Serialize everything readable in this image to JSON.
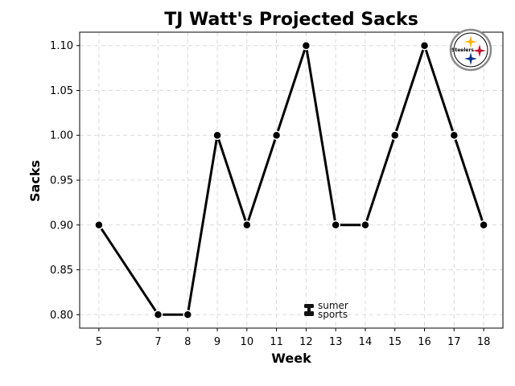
{
  "chart_data": {
    "type": "line",
    "title": "TJ Watt's Projected Sacks",
    "xlabel": "Week",
    "ylabel": "Sacks",
    "x": [
      5,
      7,
      8,
      9,
      10,
      11,
      12,
      13,
      14,
      15,
      16,
      17,
      18
    ],
    "series": [
      {
        "values": [
          0.9,
          0.8,
          0.8,
          1.0,
          0.9,
          1.0,
          1.1,
          0.9,
          0.9,
          1.0,
          1.1,
          1.0,
          0.9
        ]
      }
    ],
    "x_ticks": [
      5,
      7,
      8,
      9,
      10,
      11,
      12,
      13,
      14,
      15,
      16,
      17,
      18
    ],
    "y_ticks": [
      "0.80",
      "0.85",
      "0.90",
      "0.95",
      "1.00",
      "1.05",
      "1.10"
    ],
    "xlim": [
      4.35,
      18.65
    ],
    "ylim": [
      0.785,
      1.115
    ],
    "grid": true,
    "line_color": "#000000",
    "grid_color": "#d9d9d9",
    "marker": "circle"
  },
  "watermark": {
    "line1": "sumer",
    "line2": "sports"
  },
  "logo": {
    "icon": "steelers-logo-icon",
    "text": "Steelers",
    "colors": {
      "gold": "#FFB612",
      "red": "#C8102E",
      "blue": "#003087"
    }
  }
}
